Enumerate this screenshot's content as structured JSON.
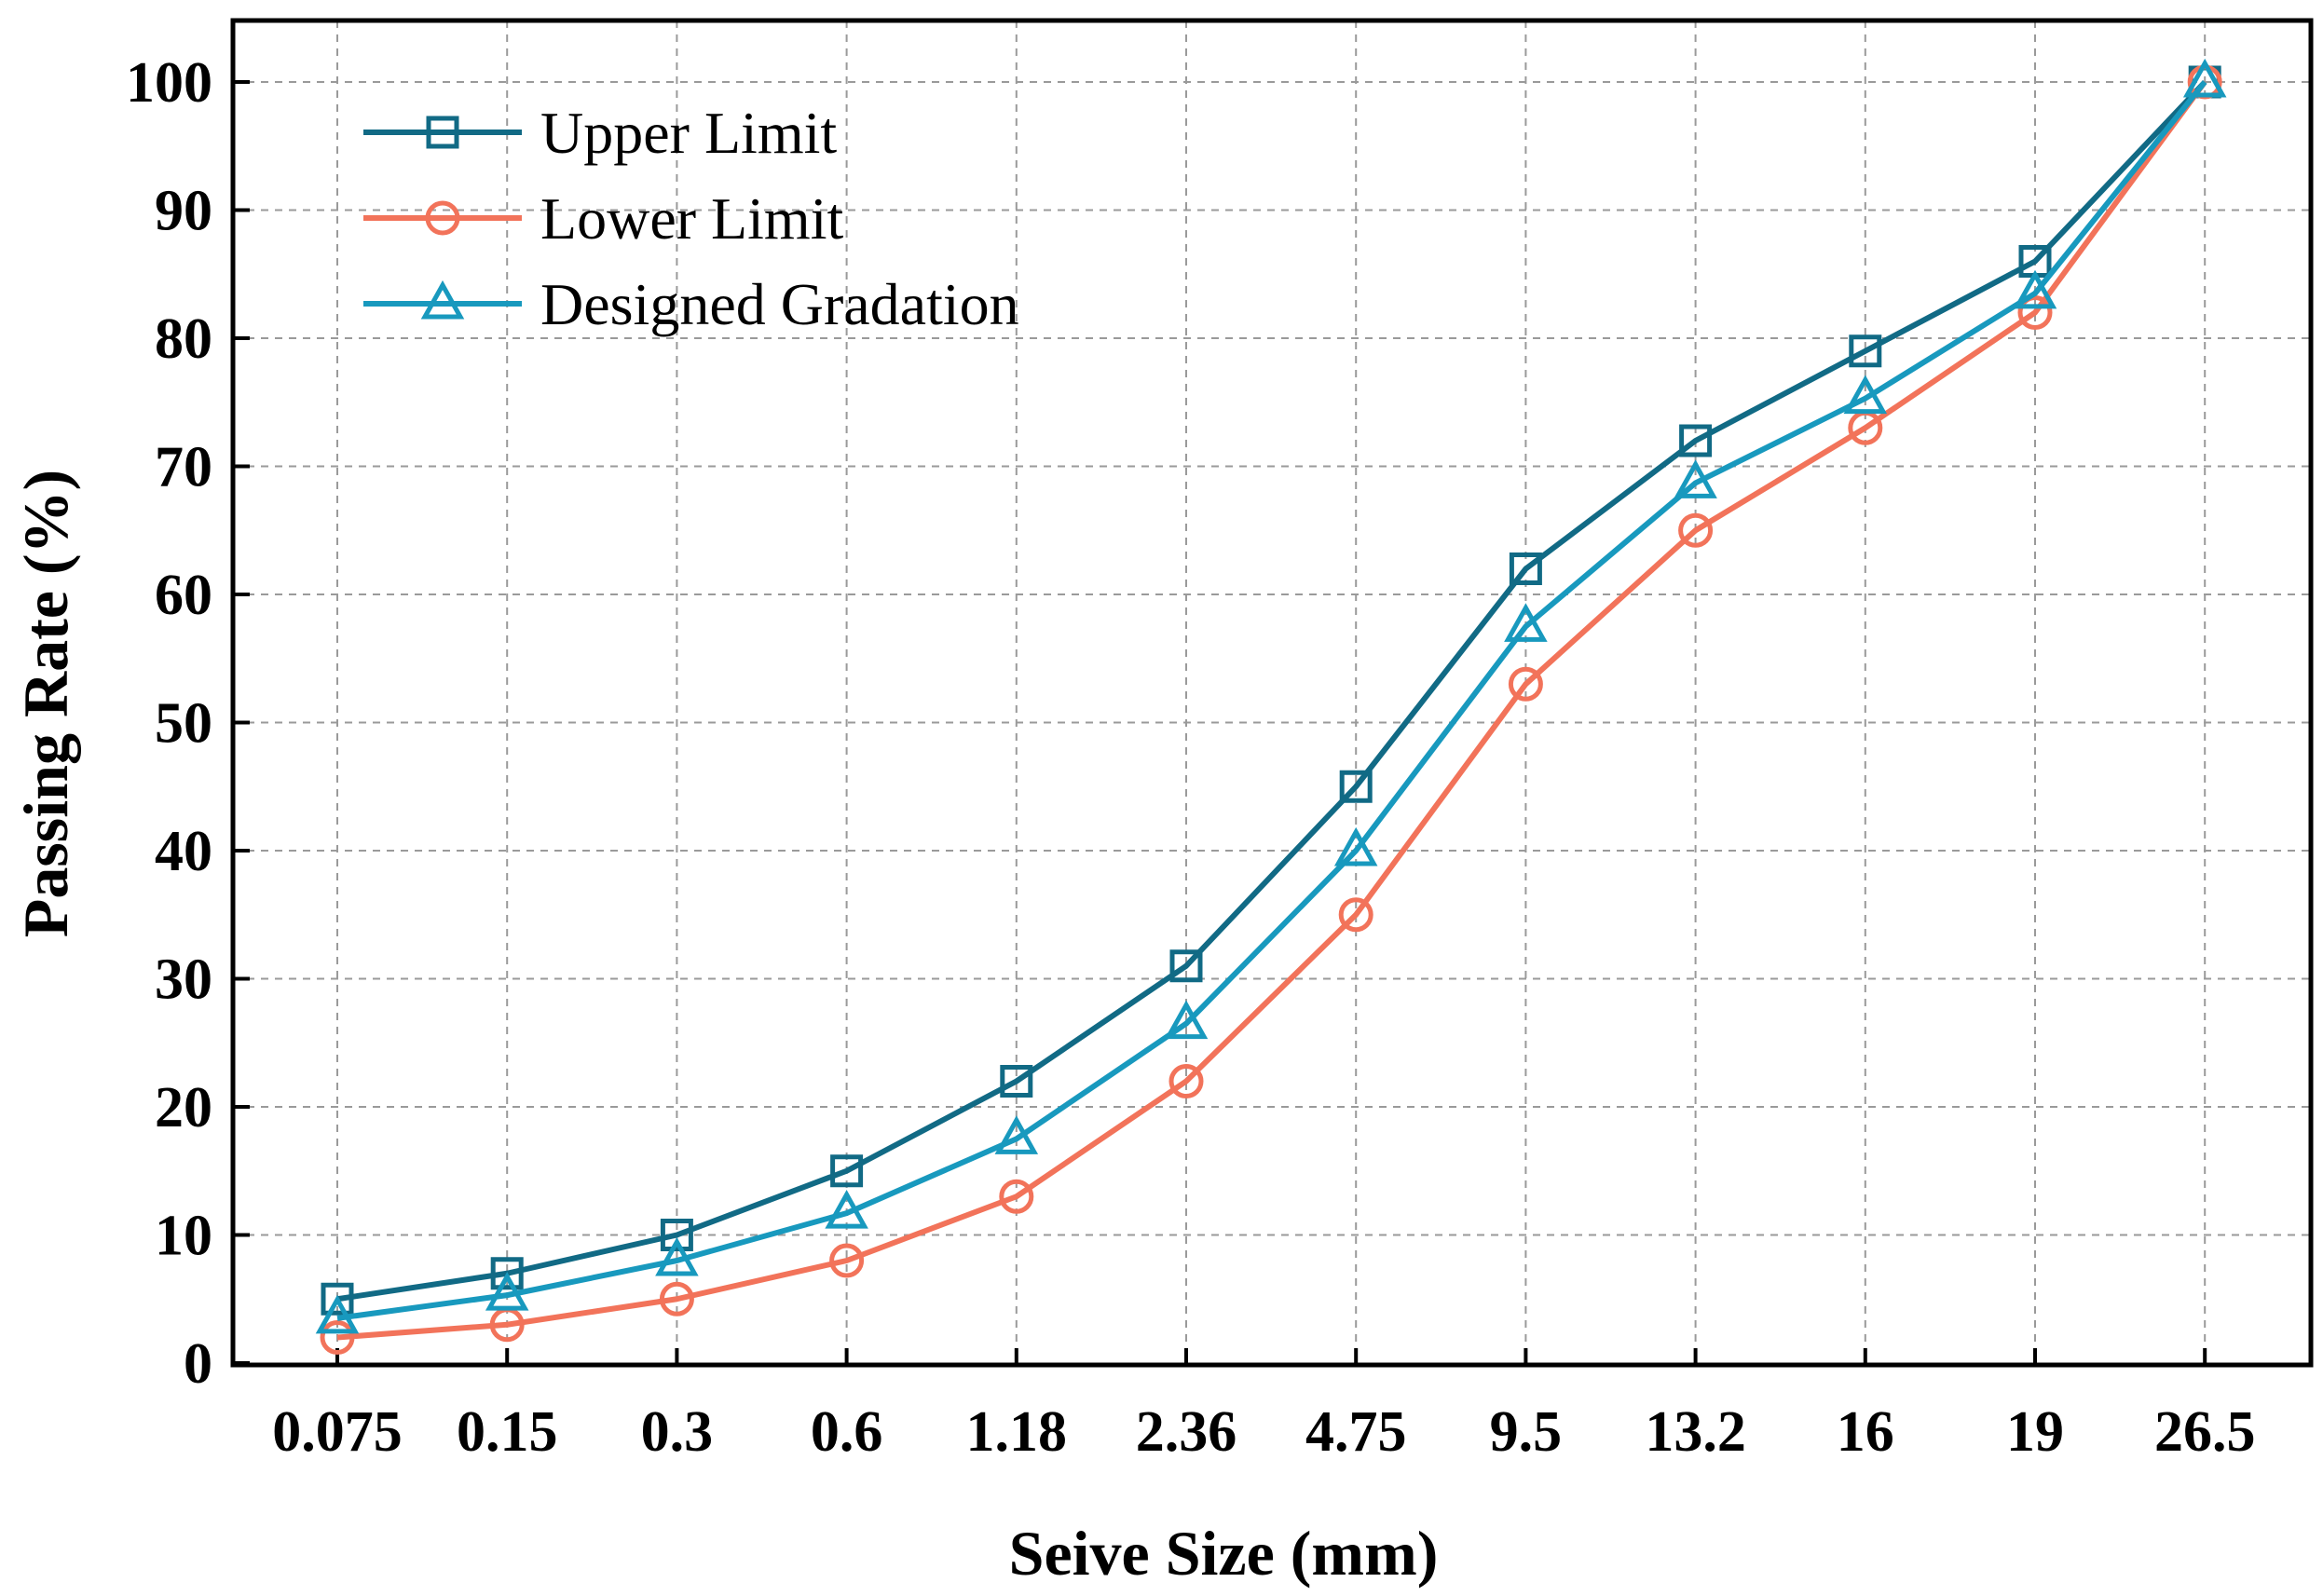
{
  "chart_data": {
    "type": "line",
    "title": "",
    "xlabel": "Seive Size (mm)",
    "ylabel": "Passing Rate (%)",
    "categories": [
      "0.075",
      "0.15",
      "0.3",
      "0.6",
      "1.18",
      "2.36",
      "4.75",
      "9.5",
      "13.2",
      "16",
      "19",
      "26.5"
    ],
    "ylim": [
      0,
      100
    ],
    "yticks": [
      "0",
      "10",
      "20",
      "30",
      "40",
      "50",
      "60",
      "70",
      "80",
      "90",
      "100"
    ],
    "grid": true,
    "legend_position": "top-left",
    "series": [
      {
        "name": "Upper Limit",
        "marker": "square",
        "color": "#116A85",
        "values": [
          5,
          7,
          10,
          15,
          22,
          31,
          45,
          62,
          72,
          79,
          86,
          100
        ]
      },
      {
        "name": "Lower Limit",
        "marker": "circle",
        "color": "#F2735A",
        "values": [
          2,
          3,
          5,
          8,
          13,
          22,
          35,
          53,
          65,
          73,
          82,
          100
        ]
      },
      {
        "name": "Designed Gradation",
        "marker": "triangle",
        "color": "#1899BE",
        "values": [
          3.5,
          5.3,
          8,
          11.7,
          17.5,
          26.5,
          40,
          57.5,
          68.7,
          75.3,
          83.5,
          100
        ]
      }
    ]
  }
}
